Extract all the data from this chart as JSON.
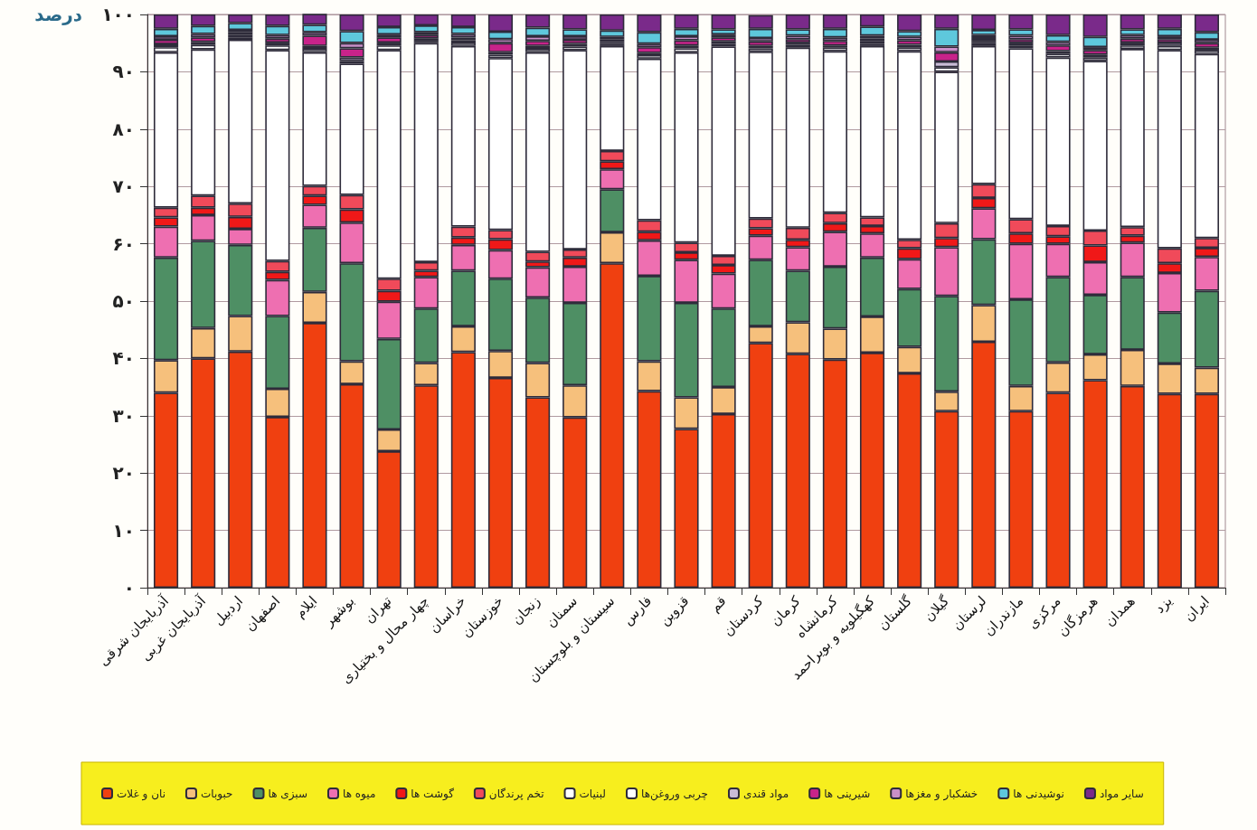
{
  "chart_data": {
    "type": "bar",
    "stacked": true,
    "ylabel": "درصد",
    "categories": [
      "آذربایجان شرقی",
      "آذربایجان غربی",
      "اردبیل",
      "اصفهان",
      "ایلام",
      "بوشهر",
      "تهران",
      "چهار محال و بختیاری",
      "خراسان",
      "خوزستان",
      "زنجان",
      "سمنان",
      "سیستان و بلوچستان",
      "فارس",
      "قزوین",
      "قم",
      "کردستان",
      "کرمان",
      "کرمانشاه",
      "کهگیلویه و بویراحمد",
      "گلستان",
      "گیلان",
      "لرستان",
      "مازندران",
      "مرکزی",
      "هرمزگان",
      "همدان",
      "یزد",
      "ایران"
    ],
    "ylim": [
      0,
      100
    ],
    "yticks": [
      {
        "value": 0,
        "label": "۰"
      },
      {
        "value": 10,
        "label": "۱۰"
      },
      {
        "value": 20,
        "label": "۲۰"
      },
      {
        "value": 30,
        "label": "۳۰"
      },
      {
        "value": 40,
        "label": "۴۰"
      },
      {
        "value": 50,
        "label": "۵۰"
      },
      {
        "value": 60,
        "label": "۶۰"
      },
      {
        "value": 70,
        "label": "۷۰"
      },
      {
        "value": 80,
        "label": "۸۰"
      },
      {
        "value": 90,
        "label": "۹۰"
      },
      {
        "value": 100,
        "label": "۱۰۰"
      }
    ],
    "grid": "y",
    "legend": "bottom",
    "series": [
      {
        "name": "نان و غلات",
        "color": "#f04010",
        "values": [
          34,
          40,
          41.2,
          29.8,
          46.2,
          35.5,
          23.8,
          35.3,
          41.1,
          36.6,
          33.2,
          29.7,
          56.6,
          34.3,
          27.7,
          30.3,
          42.7,
          40.8,
          39.8,
          41,
          37.4,
          30.8,
          42.9,
          30.8,
          34,
          36.2,
          35.2,
          33.8,
          33.8
        ]
      },
      {
        "name": "حبوبات",
        "color": "#f6c07c",
        "values": [
          5.7,
          5.3,
          6.2,
          4.9,
          5.4,
          4,
          3.8,
          3.9,
          4.5,
          4.7,
          6,
          5.6,
          5.4,
          5.2,
          5.5,
          4.7,
          2.9,
          5.5,
          5.4,
          6.3,
          4.6,
          3.4,
          6.4,
          4.4,
          5.3,
          4.5,
          6.3,
          5.3,
          4.6
        ]
      },
      {
        "name": "سبزی ها",
        "color": "#4e8f64",
        "values": [
          17.9,
          15.2,
          12.4,
          12.7,
          11.2,
          17.1,
          15.8,
          9.5,
          9.7,
          12.6,
          11.4,
          14.4,
          7.5,
          14.9,
          16.5,
          13.7,
          11.6,
          9,
          10.8,
          10.3,
          10.1,
          16.7,
          11.5,
          15.1,
          14.9,
          10.4,
          12.7,
          8.9,
          13.4
        ]
      },
      {
        "name": "میوه ها",
        "color": "#ee6fb1",
        "values": [
          5.4,
          4.5,
          2.8,
          6.3,
          4,
          7.1,
          6.5,
          5.5,
          4.5,
          5,
          5.3,
          6.3,
          3.5,
          6.2,
          7.5,
          6.1,
          4.2,
          4.1,
          6.1,
          4.2,
          5.2,
          8.5,
          5.4,
          9.7,
          5.8,
          5.7,
          6,
          6.9,
          5.9
        ]
      },
      {
        "name": "گوشت ها",
        "color": "#f01818",
        "values": [
          1.6,
          1.3,
          2.1,
          1.4,
          1.6,
          2.3,
          1.9,
          1.1,
          1.3,
          1.9,
          1,
          1.6,
          1.4,
          1.5,
          1.3,
          1.5,
          1.3,
          1.3,
          1.5,
          1.3,
          1.9,
          1.6,
          1.8,
          1.8,
          1.3,
          2.9,
          1.2,
          1.7,
          1.6
        ]
      },
      {
        "name": "تخم پرندگان",
        "color": "#f04a5a",
        "values": [
          1.7,
          2.1,
          2.3,
          1.9,
          1.7,
          2.5,
          2.1,
          1.5,
          1.9,
          1.6,
          1.7,
          1.4,
          1.8,
          2,
          1.7,
          1.6,
          1.7,
          2.1,
          1.8,
          1.5,
          1.5,
          2.6,
          2.4,
          2.5,
          1.8,
          2.6,
          1.5,
          2.6,
          1.7
        ]
      },
      {
        "name": "لبنیات",
        "color": "#ffffff",
        "values": [
          27.1,
          25.5,
          28.6,
          36.8,
          23.3,
          22.9,
          39.9,
          38.2,
          31.5,
          30,
          34.8,
          34.8,
          18.3,
          28.2,
          33.2,
          36.5,
          29.1,
          31.4,
          28.2,
          29.9,
          32.9,
          26.4,
          24.1,
          29.8,
          29.4,
          29.6,
          31.1,
          34.6,
          32.1
        ]
      },
      {
        "name": "چربی وروغن‌ها",
        "color": "#ffffff",
        "values": [
          0.9,
          0.8,
          0.4,
          0.8,
          0.6,
          0.5,
          0.8,
          0.4,
          0.6,
          0.6,
          0.6,
          0.6,
          0.4,
          0.6,
          0.7,
          0.5,
          0.6,
          0.5,
          0.6,
          0.4,
          0.6,
          0.8,
          0.5,
          0.5,
          0.6,
          0.6,
          0.6,
          0.7,
          0.6
        ]
      },
      {
        "name": "مواد قندی",
        "color": "#c9bcd6",
        "values": [
          0.5,
          0.5,
          0.4,
          0.5,
          0.5,
          0.6,
          0.5,
          0.4,
          0.4,
          0.4,
          0.5,
          0.5,
          0.3,
          0.4,
          0.5,
          0.4,
          0.4,
          0.4,
          0.4,
          0.4,
          0.5,
          1,
          0.4,
          0.5,
          0.5,
          0.5,
          0.5,
          0.6,
          0.5
        ]
      },
      {
        "name": "شیرینی ها",
        "color": "#c8238a",
        "values": [
          0.8,
          0.8,
          0.5,
          0.7,
          1.8,
          1.6,
          0.9,
          0.6,
          0.5,
          1.6,
          0.9,
          0.7,
          0.5,
          1,
          0.9,
          0.7,
          0.8,
          0.6,
          0.8,
          0.5,
          0.8,
          1.6,
          0.5,
          0.6,
          1,
          0.8,
          0.7,
          0.6,
          0.8
        ]
      },
      {
        "name": "خشکبار و مغزها",
        "color": "#c990c8",
        "values": [
          0.6,
          0.6,
          0.4,
          0.6,
          0.6,
          0.9,
          0.5,
          0.5,
          0.6,
          0.7,
          0.8,
          0.6,
          0.4,
          0.6,
          0.7,
          0.5,
          0.6,
          0.6,
          0.6,
          0.5,
          0.6,
          1,
          0.5,
          0.6,
          0.6,
          0.5,
          0.6,
          0.5,
          0.6
        ]
      },
      {
        "name": "نوشیدنی ها",
        "color": "#5ec8dc",
        "values": [
          1.3,
          1.4,
          1.2,
          1.6,
          1.3,
          2.1,
          1.3,
          1.2,
          1.2,
          1.3,
          1.5,
          1.2,
          1.1,
          2,
          1.3,
          0.9,
          1.6,
          1.1,
          1.5,
          1.6,
          1,
          3.1,
          0.9,
          1.1,
          1.2,
          1.8,
          1,
          1.3,
          1.3
        ]
      },
      {
        "name": "سایر مواد",
        "color": "#7a2a8a",
        "values": [
          2.5,
          2,
          1.5,
          2,
          1.9,
          2.9,
          2.2,
          1.9,
          2.2,
          3,
          2.3,
          2.6,
          2.8,
          3.1,
          2.5,
          2.6,
          2.4,
          2.6,
          2.5,
          2.1,
          2.9,
          2.5,
          2.7,
          2.6,
          3.6,
          3.9,
          2.6,
          2.5,
          3.1
        ]
      }
    ]
  }
}
